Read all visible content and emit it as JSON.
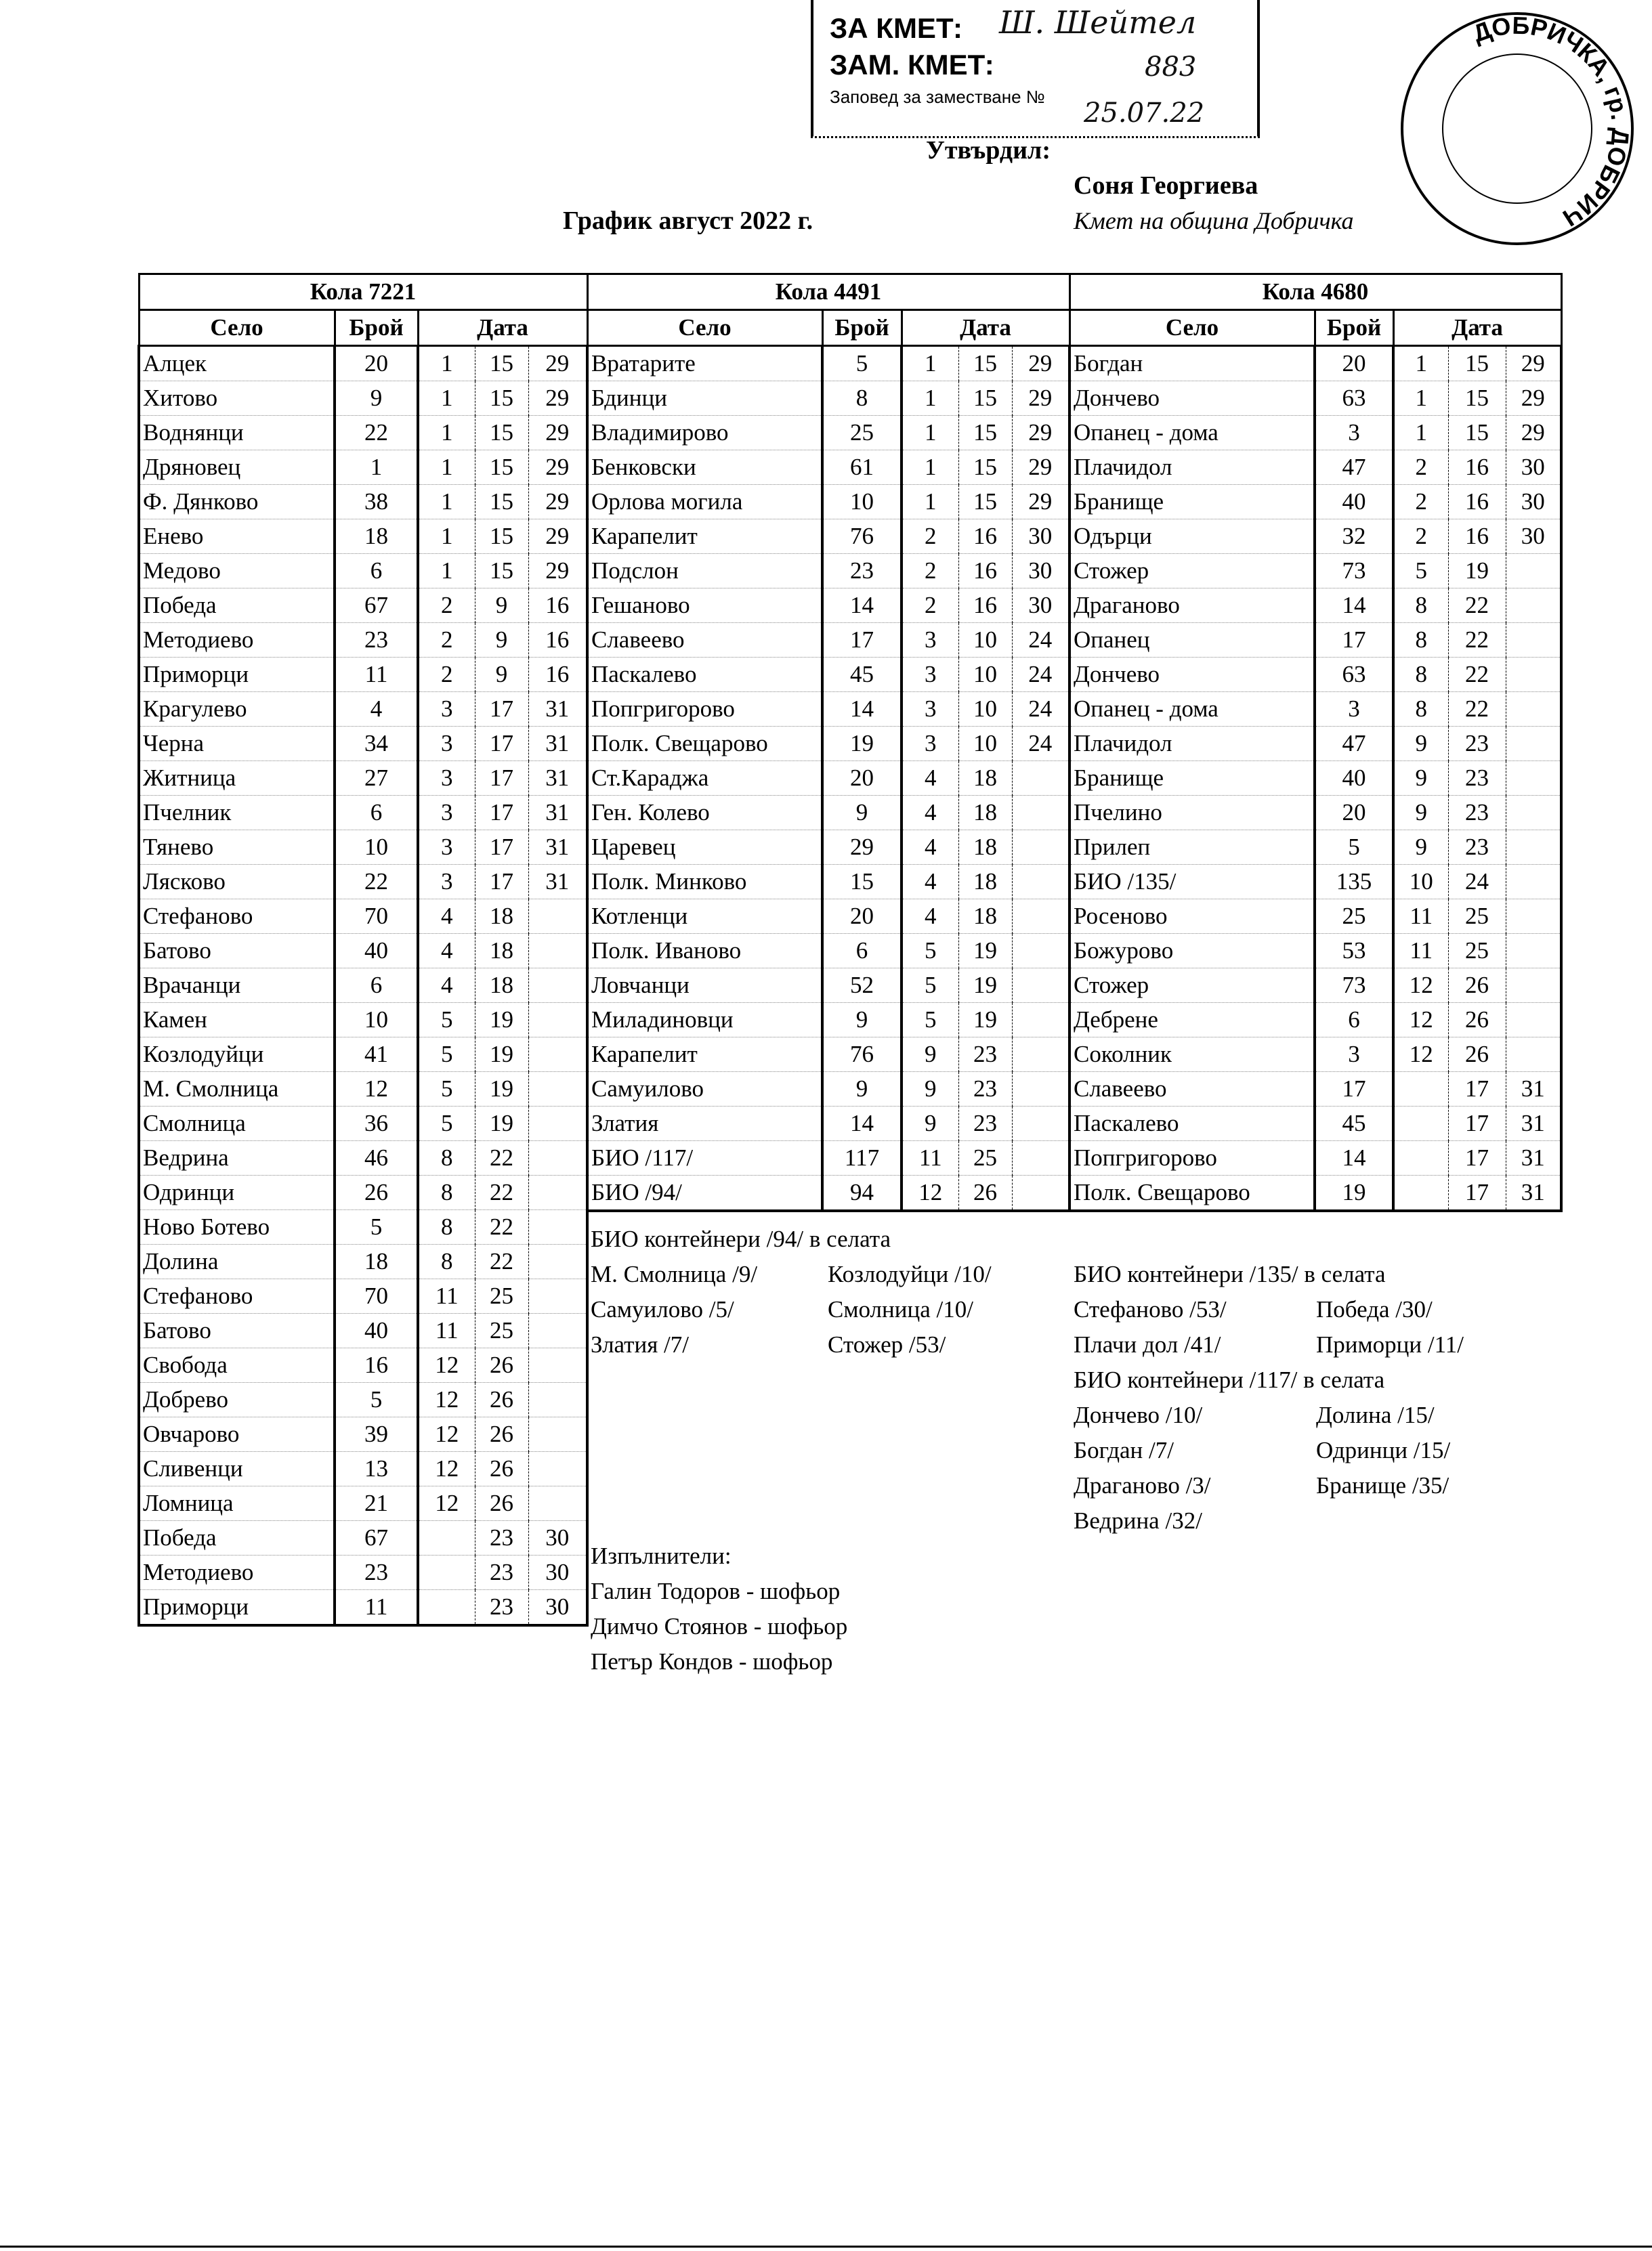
{
  "stamp": {
    "za_kmet": "ЗА КМЕТ:",
    "zam_kmet": "ЗАМ. КМЕТ:",
    "zapoved": "Заповед за заместване №",
    "handwritten_signature": "Ш. Шейтел",
    "handwritten_number": "883",
    "handwritten_date": "25.07.22",
    "seal_text": "ДОБРИЧКА, гр. ДОБРИЧ"
  },
  "approval": {
    "approved_label": "Утвърдил:",
    "name": "Соня Георгиева",
    "position": "Кмет на община Добричка"
  },
  "title": "График август 2022 г.",
  "column_headers": {
    "village": "Село",
    "count": "Брой",
    "date": "Дата"
  },
  "vehicles": [
    {
      "name": "Кола 7221",
      "rows": [
        [
          "Алцек",
          "20",
          "1",
          "15",
          "29"
        ],
        [
          "Хитово",
          "9",
          "1",
          "15",
          "29"
        ],
        [
          "Воднянци",
          "22",
          "1",
          "15",
          "29"
        ],
        [
          "Дряновец",
          "1",
          "1",
          "15",
          "29"
        ],
        [
          "Ф. Дянково",
          "38",
          "1",
          "15",
          "29"
        ],
        [
          "Енево",
          "18",
          "1",
          "15",
          "29"
        ],
        [
          "Медово",
          "6",
          "1",
          "15",
          "29"
        ],
        [
          "Победа",
          "67",
          "2",
          "9",
          "16"
        ],
        [
          "Методиево",
          "23",
          "2",
          "9",
          "16"
        ],
        [
          "Приморци",
          "11",
          "2",
          "9",
          "16"
        ],
        [
          "Крагулево",
          "4",
          "3",
          "17",
          "31"
        ],
        [
          "Черна",
          "34",
          "3",
          "17",
          "31"
        ],
        [
          "Житница",
          "27",
          "3",
          "17",
          "31"
        ],
        [
          "Пчелник",
          "6",
          "3",
          "17",
          "31"
        ],
        [
          "Тянево",
          "10",
          "3",
          "17",
          "31"
        ],
        [
          "Лясково",
          "22",
          "3",
          "17",
          "31"
        ],
        [
          "Стефаново",
          "70",
          "4",
          "18",
          ""
        ],
        [
          "Батово",
          "40",
          "4",
          "18",
          ""
        ],
        [
          "Врачанци",
          "6",
          "4",
          "18",
          ""
        ],
        [
          "Камен",
          "10",
          "5",
          "19",
          ""
        ],
        [
          "Козлодуйци",
          "41",
          "5",
          "19",
          ""
        ],
        [
          "М. Смолница",
          "12",
          "5",
          "19",
          ""
        ],
        [
          "Смолница",
          "36",
          "5",
          "19",
          ""
        ],
        [
          "Ведрина",
          "46",
          "8",
          "22",
          ""
        ],
        [
          "Одринци",
          "26",
          "8",
          "22",
          ""
        ],
        [
          "Ново Ботево",
          "5",
          "8",
          "22",
          ""
        ],
        [
          "Долина",
          "18",
          "8",
          "22",
          ""
        ],
        [
          "Стефаново",
          "70",
          "11",
          "25",
          ""
        ],
        [
          "Батово",
          "40",
          "11",
          "25",
          ""
        ],
        [
          "Свобода",
          "16",
          "12",
          "26",
          ""
        ],
        [
          "Добрево",
          "5",
          "12",
          "26",
          ""
        ],
        [
          "Овчарово",
          "39",
          "12",
          "26",
          ""
        ],
        [
          "Сливенци",
          "13",
          "12",
          "26",
          ""
        ],
        [
          "Ломница",
          "21",
          "12",
          "26",
          ""
        ],
        [
          "Победа",
          "67",
          "",
          "23",
          "30"
        ],
        [
          "Методиево",
          "23",
          "",
          "23",
          "30"
        ],
        [
          "Приморци",
          "11",
          "",
          "23",
          "30"
        ]
      ]
    },
    {
      "name": "Кола 4491",
      "rows": [
        [
          "Вратарите",
          "5",
          "1",
          "15",
          "29"
        ],
        [
          "Бдинци",
          "8",
          "1",
          "15",
          "29"
        ],
        [
          "Владимирово",
          "25",
          "1",
          "15",
          "29"
        ],
        [
          "Бенковски",
          "61",
          "1",
          "15",
          "29"
        ],
        [
          "Орлова могила",
          "10",
          "1",
          "15",
          "29"
        ],
        [
          "Карапелит",
          "76",
          "2",
          "16",
          "30"
        ],
        [
          "Подслон",
          "23",
          "2",
          "16",
          "30"
        ],
        [
          "Гешаново",
          "14",
          "2",
          "16",
          "30"
        ],
        [
          "Славеево",
          "17",
          "3",
          "10",
          "24"
        ],
        [
          "Паскалево",
          "45",
          "3",
          "10",
          "24"
        ],
        [
          "Попгригорово",
          "14",
          "3",
          "10",
          "24"
        ],
        [
          "Полк. Свещарово",
          "19",
          "3",
          "10",
          "24"
        ],
        [
          "Ст.Караджа",
          "20",
          "4",
          "18",
          ""
        ],
        [
          "Ген. Колево",
          "9",
          "4",
          "18",
          ""
        ],
        [
          "Царевец",
          "29",
          "4",
          "18",
          ""
        ],
        [
          "Полк. Минково",
          "15",
          "4",
          "18",
          ""
        ],
        [
          "Котленци",
          "20",
          "4",
          "18",
          ""
        ],
        [
          "Полк. Иваново",
          "6",
          "5",
          "19",
          ""
        ],
        [
          "Ловчанци",
          "52",
          "5",
          "19",
          ""
        ],
        [
          "Миладиновци",
          "9",
          "5",
          "19",
          ""
        ],
        [
          "Карапелит",
          "76",
          "9",
          "23",
          ""
        ],
        [
          "Самуилово",
          "9",
          "9",
          "23",
          ""
        ],
        [
          "Златия",
          "14",
          "9",
          "23",
          ""
        ],
        [
          "БИО /117/",
          "117",
          "11",
          "25",
          ""
        ],
        [
          "БИО /94/",
          "94",
          "12",
          "26",
          ""
        ]
      ]
    },
    {
      "name": "Кола 4680",
      "rows": [
        [
          "Богдан",
          "20",
          "1",
          "15",
          "29"
        ],
        [
          "Дончево",
          "63",
          "1",
          "15",
          "29"
        ],
        [
          "Опанец - дома",
          "3",
          "1",
          "15",
          "29"
        ],
        [
          "Плачидол",
          "47",
          "2",
          "16",
          "30"
        ],
        [
          "Бранище",
          "40",
          "2",
          "16",
          "30"
        ],
        [
          "Одърци",
          "32",
          "2",
          "16",
          "30"
        ],
        [
          "Стожер",
          "73",
          "5",
          "19",
          ""
        ],
        [
          "Драганово",
          "14",
          "8",
          "22",
          ""
        ],
        [
          "Опанец",
          "17",
          "8",
          "22",
          ""
        ],
        [
          "Дончево",
          "63",
          "8",
          "22",
          ""
        ],
        [
          "Опанец - дома",
          "3",
          "8",
          "22",
          ""
        ],
        [
          "Плачидол",
          "47",
          "9",
          "23",
          ""
        ],
        [
          "Бранище",
          "40",
          "9",
          "23",
          ""
        ],
        [
          "Пчелино",
          "20",
          "9",
          "23",
          ""
        ],
        [
          "Прилеп",
          "5",
          "9",
          "23",
          ""
        ],
        [
          "БИО /135/",
          "135",
          "10",
          "24",
          ""
        ],
        [
          "Росеново",
          "25",
          "11",
          "25",
          ""
        ],
        [
          "Божурово",
          "53",
          "11",
          "25",
          ""
        ],
        [
          "Стожер",
          "73",
          "12",
          "26",
          ""
        ],
        [
          "Дебрене",
          "6",
          "12",
          "26",
          ""
        ],
        [
          "Соколник",
          "3",
          "12",
          "26",
          ""
        ],
        [
          "Славеево",
          "17",
          "",
          "17",
          "31"
        ],
        [
          "Паскалево",
          "45",
          "",
          "17",
          "31"
        ],
        [
          "Попгригорово",
          "14",
          "",
          "17",
          "31"
        ],
        [
          "Полк. Свещарово",
          "19",
          "",
          "17",
          "31"
        ]
      ]
    }
  ],
  "notes": {
    "bio94": {
      "title": "БИО контейнери /94/ в селата",
      "items": [
        "М. Смолница /9/",
        "Козлодуйци /10/",
        "Самуилово /5/",
        "Смолница /10/",
        "Златия /7/",
        "Стожер /53/"
      ]
    },
    "bio135": {
      "title": "БИО контейнери /135/ в селата",
      "items": [
        "Стефаново /53/",
        "Победа /30/",
        "Плачи дол /41/",
        "Приморци /11/"
      ]
    },
    "bio117": {
      "title": "БИО контейнери /117/ в селата",
      "items": [
        "Дончево /10/",
        "Долина /15/",
        "Богдан /7/",
        "Одринци /15/",
        "Драганово /3/",
        "Бранище /35/",
        "Ведрина /32/"
      ]
    },
    "executors": {
      "title": "Изпълнители:",
      "items": [
        "Галин Тодоров - шофьор",
        "Димчо Стоянов - шофьор",
        "Петър Кондов - шофьор"
      ]
    }
  }
}
